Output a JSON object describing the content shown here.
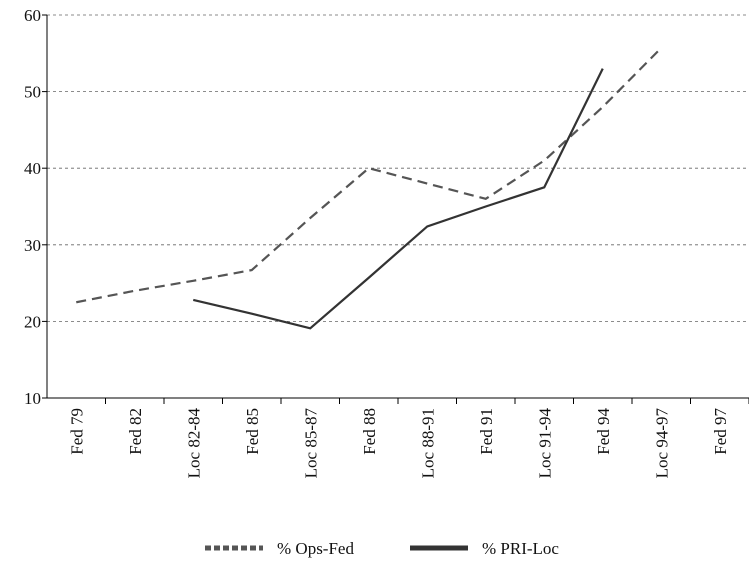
{
  "chart_data": {
    "type": "line",
    "categories": [
      "Fed 79",
      "Fed 82",
      "Loc 82-84",
      "Fed 85",
      "Loc 85-87",
      "Fed 88",
      "Loc 88-91",
      "Fed 91",
      "Loc 91-94",
      "Fed 94",
      "Loc 94-97",
      "Fed 97"
    ],
    "series": [
      {
        "name": "% Ops-Fed",
        "color": "#555555",
        "dash": true,
        "values": [
          22.5,
          24,
          25.3,
          26.7,
          33.5,
          40,
          38,
          36,
          41,
          48,
          55.7,
          null
        ]
      },
      {
        "name": "% PRI-Loc",
        "color": "#333333",
        "dash": false,
        "values": [
          null,
          null,
          22.8,
          21,
          19.1,
          25.7,
          32.4,
          35,
          37.5,
          53,
          null,
          null
        ]
      }
    ],
    "ylim": [
      10,
      60
    ],
    "yticks": [
      10,
      20,
      30,
      40,
      50,
      60
    ],
    "grid": true,
    "legend": "bottom"
  }
}
